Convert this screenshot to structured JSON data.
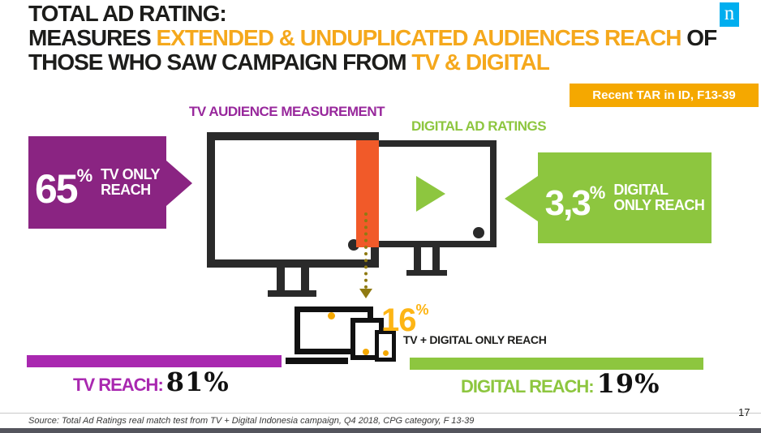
{
  "slide": {
    "title": {
      "line1": "TOTAL AD RATING:",
      "line2_black1": "MEASURES ",
      "line2_orange": "EXTENDED & UNDUPLICATED AUDIENCES REACH",
      "line2_black2": " OF",
      "line3_black": "THOSE WHO SAW CAMPAIGN FROM ",
      "line3_orange": "TV & DIGITAL"
    },
    "logo_letter": "n",
    "badge_text": "Recent TAR in ID, F13-39",
    "tv_section_label": "TV AUDIENCE MEASUREMENT",
    "digital_section_label": "DIGITAL AD RATINGS",
    "tv_only": {
      "value": "65",
      "pct": "%",
      "label_line1": "TV ONLY",
      "label_line2": "REACH"
    },
    "digital_only": {
      "value": "3,3",
      "pct": "%",
      "label_line1": "DIGITAL",
      "label_line2": "ONLY REACH"
    },
    "overlap": {
      "value": "16",
      "pct": "%",
      "label": "TV + DIGITAL ONLY REACH"
    },
    "tv_reach": {
      "label": "TV REACH:",
      "value": "81%"
    },
    "digital_reach": {
      "label": "DIGITAL REACH:",
      "value": "19%"
    },
    "source": "Source: Total Ad Ratings real match  test from TV + Digital Indonesia campaign,  Q4 2018, CPG category, F 13-39",
    "page_number": "17",
    "colors": {
      "accent_amber": "#F5A800",
      "title_orange": "#F5A81C",
      "purple_box": "#8A2482",
      "purple_bar": "#A928B0",
      "purple_label": "#98289C",
      "green": "#8DC63F",
      "overlap_orange": "#F15A29",
      "dotted_arrow_olive": "#8F7A12",
      "monitor_black": "#2A2A2A",
      "nielsen_blue": "#00AEEF",
      "bottom_bar_gray": "#54555D"
    },
    "figures": {
      "tv_only_reach_pct": 65,
      "digital_only_reach_pct": 3.3,
      "tv_plus_digital_overlap_pct": 16,
      "tv_reach_pct": 81,
      "digital_reach_pct": 19
    }
  }
}
